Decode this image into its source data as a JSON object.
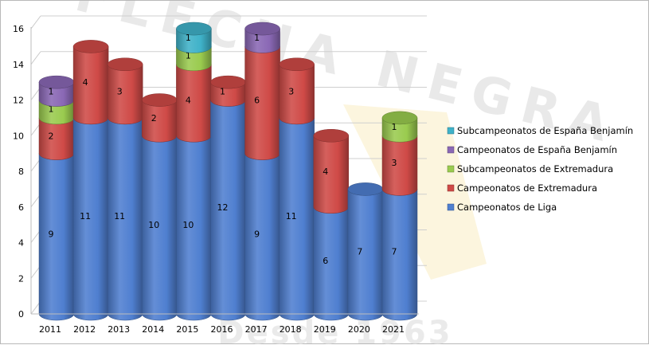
{
  "chart_data": {
    "type": "bar",
    "stacked": true,
    "style": "3d-cylinder",
    "categories": [
      "2011",
      "2012",
      "2013",
      "2014",
      "2015",
      "2016",
      "2017",
      "2018",
      "2019",
      "2020",
      "2021"
    ],
    "ylim": [
      0,
      16
    ],
    "yticks": [
      0,
      2,
      4,
      6,
      8,
      10,
      12,
      14,
      16
    ],
    "grid": true,
    "legend_position": "right",
    "series": [
      {
        "name": "Campeonatos de Liga",
        "color": "#4f7fd0",
        "values": [
          9,
          11,
          11,
          10,
          10,
          12,
          9,
          11,
          6,
          7,
          7
        ]
      },
      {
        "name": "Campeonatos de Extremadura",
        "color": "#cf4a47",
        "values": [
          2,
          4,
          3,
          2,
          4,
          1,
          6,
          3,
          4,
          0,
          3
        ]
      },
      {
        "name": "Subcampeonatos de Extremadura",
        "color": "#9acb4f",
        "values": [
          1,
          0,
          0,
          0,
          1,
          0,
          0,
          0,
          0,
          0,
          1
        ]
      },
      {
        "name": "Campeonatos de España Benjamín",
        "color": "#8a68b5",
        "values": [
          1,
          0,
          0,
          0,
          0,
          0,
          1,
          0,
          0,
          0,
          0
        ]
      },
      {
        "name": "Subcampeonatos de España Benjamín",
        "color": "#3fb2c9",
        "values": [
          0,
          0,
          0,
          0,
          1,
          0,
          0,
          0,
          0,
          0,
          0
        ]
      }
    ],
    "data_labels": [
      {
        "category": "2016",
        "series": "Campeonatos de Extremadura",
        "text": "1"
      }
    ],
    "watermark": {
      "top_text": "FLECHA NEGRA",
      "bottom_text": "Desde 1963"
    }
  }
}
